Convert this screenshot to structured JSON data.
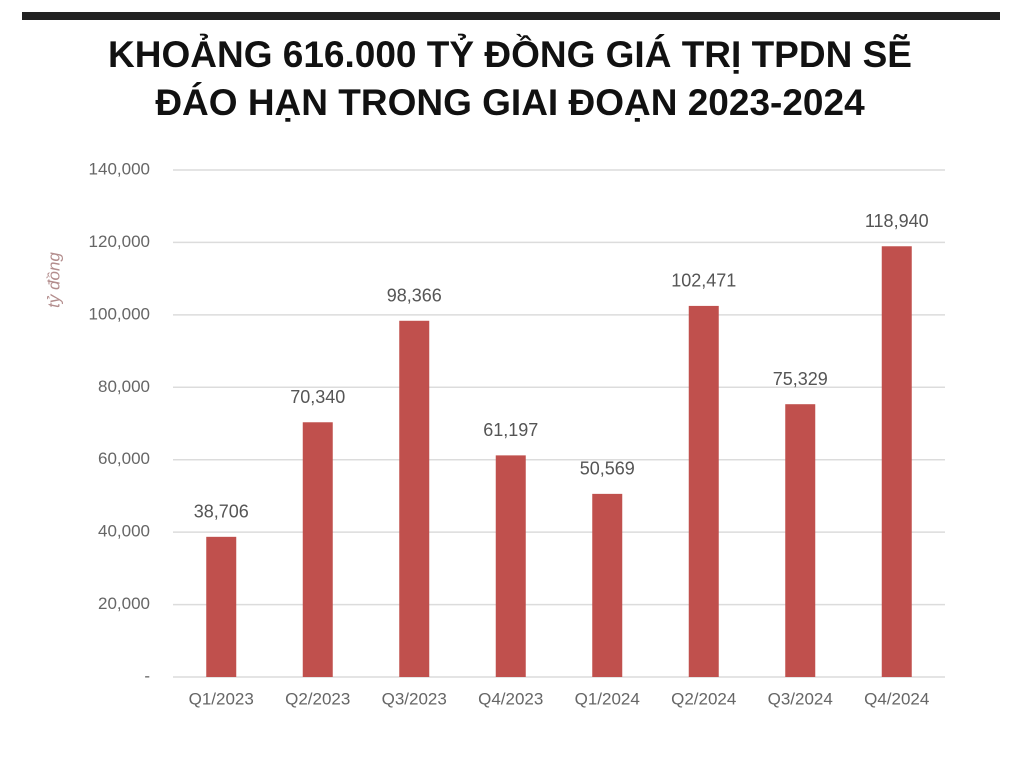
{
  "chart_data": {
    "type": "bar",
    "title": [
      "KHOẢNG 616.000 TỶ ĐỒNG GIÁ TRỊ TPDN SẼ",
      "ĐÁO HẠN TRONG GIAI ĐOẠN 2023-2024"
    ],
    "ylabel": "tỷ đồng",
    "categories": [
      "Q1/2023",
      "Q2/2023",
      "Q3/2023",
      "Q4/2023",
      "Q1/2024",
      "Q2/2024",
      "Q3/2024",
      "Q4/2024"
    ],
    "values": [
      38706,
      70340,
      98366,
      61197,
      50569,
      102471,
      75329,
      118940
    ],
    "value_labels": [
      "38,706",
      "70,340",
      "98,366",
      "61,197",
      "50,569",
      "102,471",
      "75,329",
      "118,940"
    ],
    "color": "#c0504d",
    "ylim": [
      0,
      140000
    ],
    "yticks": [
      {
        "value": 0,
        "label": "-"
      },
      {
        "value": 20000,
        "label": "20,000"
      },
      {
        "value": 40000,
        "label": "40,000"
      },
      {
        "value": 60000,
        "label": "60,000"
      },
      {
        "value": 80000,
        "label": "80,000"
      },
      {
        "value": 100000,
        "label": "100,000"
      },
      {
        "value": 120000,
        "label": "120,000"
      },
      {
        "value": 140000,
        "label": "140,000"
      }
    ],
    "grid": true
  }
}
